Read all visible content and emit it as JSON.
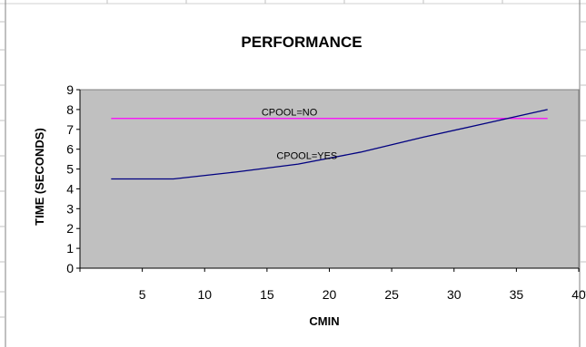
{
  "chart_data": {
    "type": "line",
    "title": "PERFORMANCE",
    "xlabel": "CMIN",
    "ylabel": "TIME (SECONDS)",
    "xlim": [
      0,
      40
    ],
    "ylim": [
      0,
      9
    ],
    "xticks": [
      5,
      10,
      15,
      20,
      25,
      30,
      35,
      40
    ],
    "yticks": [
      0,
      1,
      2,
      3,
      4,
      5,
      6,
      7,
      8,
      9
    ],
    "grid": false,
    "legend": "none",
    "plot_background": "#c0c0c0",
    "series": [
      {
        "name": "CPOOL=NO",
        "color": "#ff00ff",
        "x": [
          2.5,
          37.5
        ],
        "y": [
          7.55,
          7.55
        ]
      },
      {
        "name": "CPOOL=YES",
        "color": "#000080",
        "x": [
          2.5,
          7.5,
          12.5,
          17.5,
          22.5,
          27.5,
          32.5,
          37.5
        ],
        "y": [
          4.5,
          4.5,
          4.85,
          5.25,
          5.85,
          6.6,
          7.3,
          8.0
        ]
      }
    ],
    "annotations": [
      {
        "text": "CPOOL=NO",
        "x": 16.8,
        "y": 7.7,
        "series": 0
      },
      {
        "text": "CPOOL=YES",
        "x": 18.2,
        "y": 5.5,
        "series": 1
      }
    ]
  }
}
